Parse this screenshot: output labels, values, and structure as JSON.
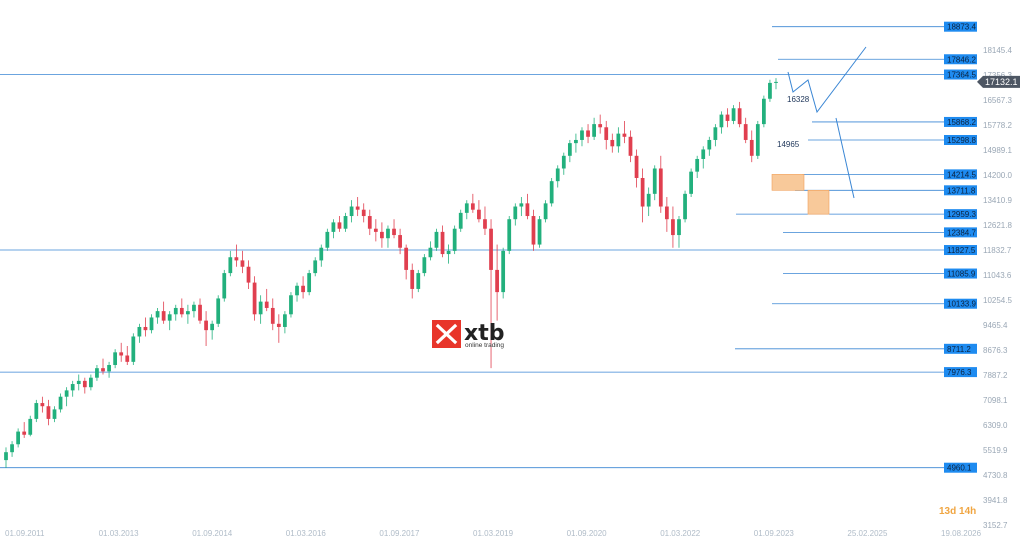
{
  "chart_data": {
    "type": "candlestick",
    "ylim": [
      3152.7,
      19400
    ],
    "y_ticks": [
      3152.7,
      3941.8,
      4730.8,
      5519.9,
      6309.0,
      7098.1,
      7887.2,
      8676.3,
      9465.4,
      10254.5,
      11043.6,
      11832.7,
      12621.8,
      13410.9,
      14200.0,
      14989.1,
      15778.2,
      16567.3,
      17356.3,
      18145.4
    ],
    "y_tick_labels": [
      "3152.7",
      "3941.8",
      "4730.8",
      "5519.9",
      "6309.0",
      "7098.1",
      "7887.2",
      "8676.3",
      "9465.4",
      "10254.5",
      "11043.6",
      "11832.7",
      "12621.8",
      "13410.9",
      "14200.0",
      "14989.1",
      "15778.2",
      "16567.3",
      "17356.3",
      "18145.4"
    ],
    "x_tick_labels": [
      "01.09.2011",
      "01.03.2013",
      "01.09.2014",
      "01.03.2016",
      "01.09.2017",
      "01.03.2019",
      "01.09.2020",
      "01.03.2022",
      "01.09.2023",
      "25.02.2025",
      "19.08.2026"
    ],
    "last_price": "17132.1",
    "levels": [
      {
        "value": 18873.4,
        "label": "18873.4"
      },
      {
        "value": 17846.2,
        "label": "17846.2"
      },
      {
        "value": 17364.5,
        "label": "17364.5"
      },
      {
        "value": 15868.2,
        "label": "15868.2"
      },
      {
        "value": 15298.8,
        "label": "15298.8"
      },
      {
        "value": 14214.5,
        "label": "14214.5"
      },
      {
        "value": 13711.8,
        "label": "13711.8"
      },
      {
        "value": 12959.3,
        "label": "12959.3"
      },
      {
        "value": 12384.7,
        "label": "12384.7"
      },
      {
        "value": 11827.5,
        "label": "11827.5"
      },
      {
        "value": 11085.9,
        "label": "11085.9"
      },
      {
        "value": 10133.9,
        "label": "10133.9"
      },
      {
        "value": 8711.2,
        "label": "8711.2"
      },
      {
        "value": 7976.3,
        "label": "7976.3"
      },
      {
        "value": 4960.1,
        "label": "4960.1"
      }
    ],
    "annotations": [
      {
        "text": "16328"
      },
      {
        "text": "14965"
      }
    ],
    "candles": [
      [
        5200,
        5600,
        4950,
        5450
      ],
      [
        5450,
        5800,
        5300,
        5700
      ],
      [
        5700,
        6200,
        5600,
        6100
      ],
      [
        6100,
        6400,
        5900,
        6000
      ],
      [
        6000,
        6600,
        5950,
        6500
      ],
      [
        6500,
        7100,
        6400,
        7000
      ],
      [
        7000,
        7200,
        6700,
        6900
      ],
      [
        6900,
        7100,
        6300,
        6500
      ],
      [
        6500,
        6900,
        6400,
        6800
      ],
      [
        6800,
        7300,
        6700,
        7200
      ],
      [
        7200,
        7500,
        6900,
        7400
      ],
      [
        7400,
        7700,
        7200,
        7600
      ],
      [
        7600,
        7900,
        7400,
        7700
      ],
      [
        7700,
        7800,
        7300,
        7500
      ],
      [
        7500,
        7900,
        7400,
        7800
      ],
      [
        7800,
        8200,
        7700,
        8100
      ],
      [
        8100,
        8400,
        7900,
        8000
      ],
      [
        8000,
        8300,
        7800,
        8200
      ],
      [
        8200,
        8700,
        8100,
        8600
      ],
      [
        8600,
        8900,
        8300,
        8500
      ],
      [
        8500,
        8800,
        8200,
        8300
      ],
      [
        8300,
        9200,
        8200,
        9100
      ],
      [
        9100,
        9500,
        8900,
        9400
      ],
      [
        9400,
        9700,
        9100,
        9300
      ],
      [
        9300,
        9800,
        9200,
        9700
      ],
      [
        9700,
        10000,
        9500,
        9900
      ],
      [
        9900,
        10200,
        9500,
        9600
      ],
      [
        9600,
        9900,
        9300,
        9800
      ],
      [
        9800,
        10100,
        9600,
        10000
      ],
      [
        10000,
        10300,
        9700,
        9800
      ],
      [
        9800,
        10100,
        9500,
        9900
      ],
      [
        9900,
        10200,
        9700,
        10100
      ],
      [
        10100,
        10300,
        9500,
        9600
      ],
      [
        9600,
        9900,
        8800,
        9300
      ],
      [
        9300,
        9600,
        9000,
        9500
      ],
      [
        9500,
        10400,
        9400,
        10300
      ],
      [
        10300,
        11200,
        10200,
        11100
      ],
      [
        11100,
        11800,
        11000,
        11600
      ],
      [
        11600,
        12000,
        11300,
        11500
      ],
      [
        11500,
        11800,
        11100,
        11300
      ],
      [
        11300,
        11500,
        10600,
        10800
      ],
      [
        10800,
        11000,
        9600,
        9800
      ],
      [
        9800,
        10400,
        9500,
        10200
      ],
      [
        10200,
        10600,
        9900,
        10000
      ],
      [
        10000,
        10300,
        9300,
        9500
      ],
      [
        9500,
        9800,
        8900,
        9400
      ],
      [
        9400,
        9900,
        9200,
        9800
      ],
      [
        9800,
        10500,
        9700,
        10400
      ],
      [
        10400,
        10800,
        10200,
        10700
      ],
      [
        10700,
        11000,
        10300,
        10500
      ],
      [
        10500,
        11200,
        10400,
        11100
      ],
      [
        11100,
        11600,
        11000,
        11500
      ],
      [
        11500,
        12000,
        11300,
        11900
      ],
      [
        11900,
        12500,
        11800,
        12400
      ],
      [
        12400,
        12800,
        12200,
        12700
      ],
      [
        12700,
        12900,
        12400,
        12500
      ],
      [
        12500,
        13000,
        12400,
        12900
      ],
      [
        12900,
        13400,
        12700,
        13200
      ],
      [
        13200,
        13500,
        12900,
        13100
      ],
      [
        13100,
        13300,
        12700,
        12900
      ],
      [
        12900,
        13100,
        12300,
        12500
      ],
      [
        12500,
        12800,
        12100,
        12400
      ],
      [
        12400,
        12700,
        11900,
        12200
      ],
      [
        12200,
        12600,
        11900,
        12500
      ],
      [
        12500,
        12800,
        12200,
        12300
      ],
      [
        12300,
        12500,
        11700,
        11900
      ],
      [
        11900,
        12000,
        10900,
        11200
      ],
      [
        11200,
        11400,
        10300,
        10600
      ],
      [
        10600,
        11200,
        10500,
        11100
      ],
      [
        11100,
        11700,
        11000,
        11600
      ],
      [
        11600,
        12100,
        11500,
        11900
      ],
      [
        11900,
        12500,
        11800,
        12400
      ],
      [
        12400,
        12600,
        11600,
        11700
      ],
      [
        11700,
        12000,
        11400,
        11800
      ],
      [
        11800,
        12600,
        11700,
        12500
      ],
      [
        12500,
        13100,
        12400,
        13000
      ],
      [
        13000,
        13400,
        12800,
        13300
      ],
      [
        13300,
        13600,
        13000,
        13100
      ],
      [
        13100,
        13400,
        12700,
        12800
      ],
      [
        12800,
        13200,
        12300,
        12500
      ],
      [
        12500,
        12800,
        8100,
        11200
      ],
      [
        11200,
        12000,
        9600,
        10500
      ],
      [
        10500,
        11900,
        10300,
        11800
      ],
      [
        11800,
        12900,
        11700,
        12800
      ],
      [
        12800,
        13300,
        12600,
        13200
      ],
      [
        13200,
        13500,
        12900,
        13300
      ],
      [
        13300,
        13600,
        12800,
        12900
      ],
      [
        12900,
        13100,
        11800,
        12000
      ],
      [
        12000,
        12900,
        11900,
        12800
      ],
      [
        12800,
        13400,
        12700,
        13300
      ],
      [
        13300,
        14100,
        13200,
        14000
      ],
      [
        14000,
        14500,
        13800,
        14400
      ],
      [
        14400,
        14900,
        14200,
        14800
      ],
      [
        14800,
        15300,
        14600,
        15200
      ],
      [
        15200,
        15500,
        14900,
        15300
      ],
      [
        15300,
        15700,
        15100,
        15600
      ],
      [
        15600,
        15800,
        15200,
        15400
      ],
      [
        15400,
        16000,
        15300,
        15800
      ],
      [
        15800,
        16100,
        15500,
        15700
      ],
      [
        15700,
        15900,
        15000,
        15300
      ],
      [
        15300,
        15500,
        14900,
        15100
      ],
      [
        15100,
        15700,
        14900,
        15500
      ],
      [
        15500,
        15900,
        15200,
        15400
      ],
      [
        15400,
        15600,
        14600,
        14800
      ],
      [
        14800,
        15000,
        13800,
        14100
      ],
      [
        14100,
        14400,
        12700,
        13200
      ],
      [
        13200,
        13800,
        12900,
        13600
      ],
      [
        13600,
        14500,
        13400,
        14400
      ],
      [
        14400,
        14800,
        13000,
        13200
      ],
      [
        13200,
        13500,
        12400,
        12800
      ],
      [
        12800,
        13200,
        11900,
        12300
      ],
      [
        12300,
        12900,
        11900,
        12800
      ],
      [
        12800,
        13700,
        12700,
        13600
      ],
      [
        13600,
        14400,
        13500,
        14300
      ],
      [
        14300,
        14800,
        14100,
        14700
      ],
      [
        14700,
        15100,
        14400,
        15000
      ],
      [
        15000,
        15400,
        14800,
        15300
      ],
      [
        15300,
        15800,
        15100,
        15700
      ],
      [
        15700,
        16200,
        15500,
        16100
      ],
      [
        16100,
        16300,
        15700,
        15900
      ],
      [
        15900,
        16400,
        15800,
        16300
      ],
      [
        16300,
        16500,
        15700,
        15800
      ],
      [
        15800,
        16000,
        15200,
        15300
      ],
      [
        15300,
        15600,
        14600,
        14800
      ],
      [
        14800,
        15900,
        14700,
        15800
      ],
      [
        15800,
        16700,
        15700,
        16600
      ],
      [
        16600,
        17200,
        16500,
        17100
      ],
      [
        17100,
        17250,
        16900,
        17132
      ]
    ]
  },
  "branding": {
    "logo_text": "xtb",
    "logo_sub": "online trading"
  },
  "timer": {
    "text": "13d 14h"
  },
  "colors": {
    "up": "#22b07d",
    "down": "#e03f4f",
    "level_line": "#3a86d4",
    "level_label_bg": "#1e8bf0",
    "price_label_bg": "#4d5663",
    "zone_fill": "#f8c99a",
    "zone_stroke": "#f0a05a",
    "logo_red": "#e8352a"
  }
}
